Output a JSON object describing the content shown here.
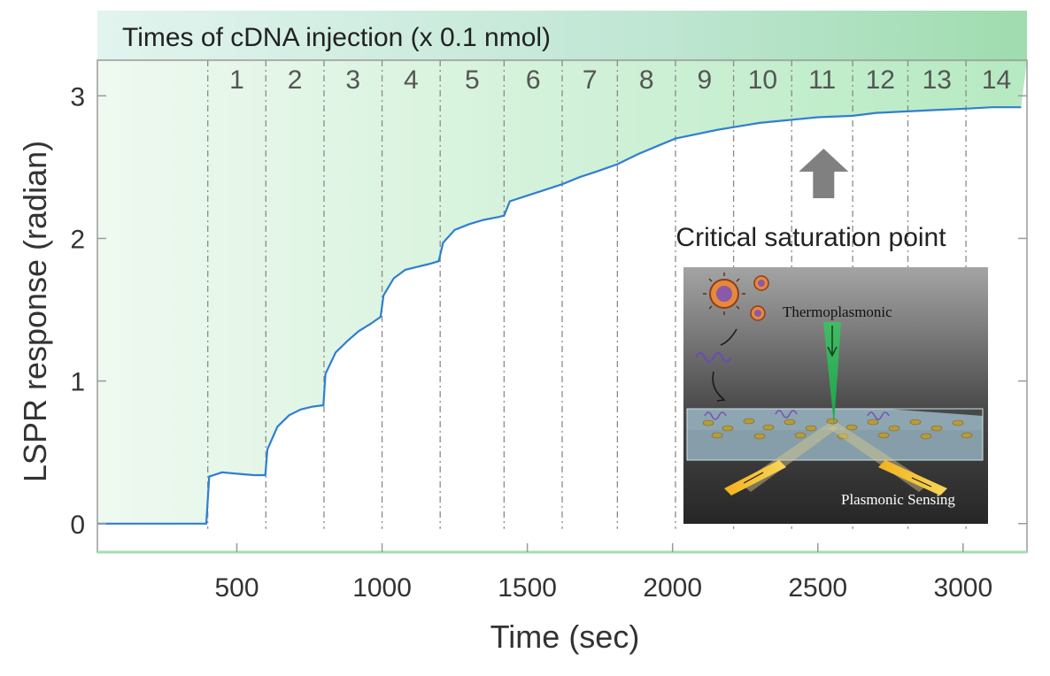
{
  "chart_data": {
    "type": "line",
    "band_title": "Times of cDNA injection (x 0.1 nmol)",
    "xlabel": "Time (sec)",
    "ylabel": "LSPR response (radian)",
    "xlim": [
      20,
      3220
    ],
    "ylim": [
      -0.2,
      3.25
    ],
    "x_ticks": [
      500,
      1000,
      1500,
      2000,
      2500,
      3000
    ],
    "y_ticks": [
      0,
      1,
      2,
      3
    ],
    "grid": false,
    "injections": {
      "times": [
        400,
        600,
        800,
        1000,
        1200,
        1420,
        1620,
        1810,
        2010,
        2210,
        2410,
        2620,
        2810,
        3010
      ],
      "labels": [
        "1",
        "2",
        "3",
        "4",
        "5",
        "6",
        "7",
        "8",
        "9",
        "10",
        "11",
        "12",
        "13",
        "14"
      ]
    },
    "series": [
      {
        "color": "#2f7fd0",
        "x": [
          20,
          395,
          405,
          450,
          500,
          560,
          598,
          605,
          640,
          680,
          720,
          760,
          798,
          805,
          840,
          880,
          920,
          960,
          995,
          1005,
          1040,
          1080,
          1120,
          1160,
          1195,
          1210,
          1250,
          1300,
          1350,
          1400,
          1420,
          1440,
          1500,
          1560,
          1620,
          1680,
          1740,
          1810,
          1880,
          1950,
          2010,
          2080,
          2150,
          2210,
          2300,
          2400,
          2500,
          2620,
          2700,
          2800,
          2900,
          3010,
          3100,
          3200
        ],
        "y": [
          0,
          0,
          0.33,
          0.36,
          0.35,
          0.34,
          0.34,
          0.52,
          0.68,
          0.76,
          0.8,
          0.82,
          0.83,
          1.05,
          1.2,
          1.28,
          1.35,
          1.4,
          1.45,
          1.6,
          1.72,
          1.78,
          1.8,
          1.82,
          1.84,
          1.97,
          2.06,
          2.1,
          2.13,
          2.15,
          2.16,
          2.26,
          2.3,
          2.34,
          2.38,
          2.43,
          2.47,
          2.52,
          2.59,
          2.65,
          2.7,
          2.73,
          2.76,
          2.78,
          2.81,
          2.83,
          2.85,
          2.86,
          2.88,
          2.89,
          2.9,
          2.91,
          2.92,
          2.92
        ]
      }
    ],
    "annotation": "Critical saturation point",
    "annotation_arrow_x": 2520,
    "inset_labels": {
      "top": "Thermoplasmonic",
      "bottom": "Plasmonic Sensing"
    }
  }
}
